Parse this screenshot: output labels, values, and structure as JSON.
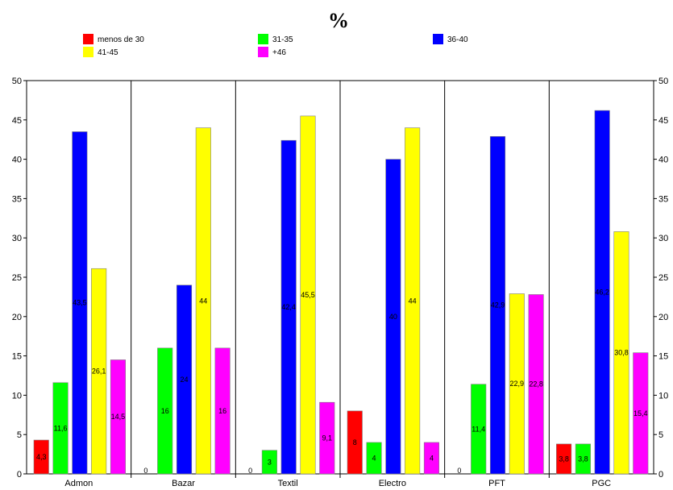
{
  "chart_data": {
    "type": "bar",
    "title": "%",
    "categories": [
      "Admon",
      "Bazar",
      "Textil",
      "Electro",
      "PFT",
      "PGC"
    ],
    "ylim": [
      0,
      50
    ],
    "yticks": [
      0,
      5,
      10,
      15,
      20,
      25,
      30,
      35,
      40,
      45,
      50
    ],
    "grid": "vertical separators between categories",
    "legend_position": "top",
    "series": [
      {
        "name": "menos de 30",
        "color": "#ff0000",
        "values": [
          4.3,
          0,
          0,
          8,
          0,
          3.8
        ],
        "labels": [
          "4,3",
          "0",
          "0",
          "8",
          "0",
          "3,8"
        ]
      },
      {
        "name": "31-35",
        "color": "#00ff00",
        "values": [
          11.6,
          16,
          3,
          4,
          11.4,
          3.8
        ],
        "labels": [
          "11,6",
          "16",
          "3",
          "4",
          "11,4",
          "3,8"
        ]
      },
      {
        "name": "36-40",
        "color": "#0000ff",
        "values": [
          43.5,
          24,
          42.4,
          40,
          42.9,
          46.2
        ],
        "labels": [
          "43,5",
          "24",
          "42,4",
          "40",
          "42,9",
          "46,2"
        ]
      },
      {
        "name": "41-45",
        "color": "#ffff00",
        "values": [
          26.1,
          44,
          45.5,
          44,
          22.9,
          30.8
        ],
        "labels": [
          "26,1",
          "44",
          "45,5",
          "44",
          "22,9",
          "30,8"
        ]
      },
      {
        "name": "+46",
        "color": "#ff00ff",
        "values": [
          14.5,
          16,
          9.1,
          4,
          22.8,
          15.4
        ],
        "labels": [
          "14,5",
          "16",
          "9,1",
          "4",
          "22,8",
          "15,4"
        ]
      }
    ]
  }
}
